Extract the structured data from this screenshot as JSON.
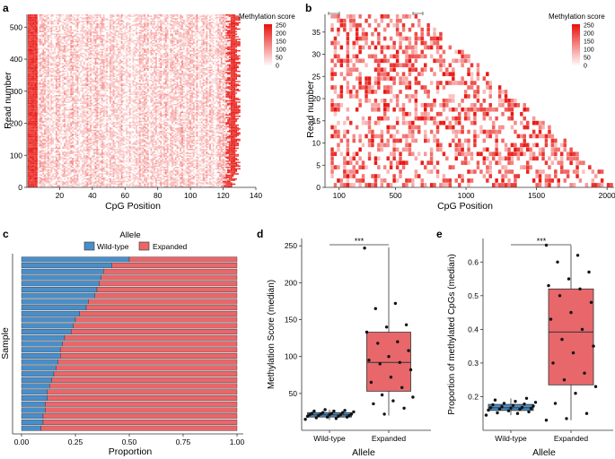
{
  "chart_data": [
    {
      "panel": "a",
      "type": "heatmap",
      "xlabel": "CpG Position",
      "ylabel": "Read number",
      "xlim": [
        0,
        140
      ],
      "ylim": [
        0,
        540
      ],
      "x_ticks": [
        "20",
        "40",
        "60",
        "80",
        "100",
        "120",
        "140"
      ],
      "y_ticks": [
        "0",
        "100",
        "200",
        "300",
        "400",
        "500"
      ],
      "legend": {
        "title": "Methylation score",
        "ticks": [
          "250",
          "200",
          "150",
          "100",
          "50",
          "0"
        ]
      }
    },
    {
      "panel": "b",
      "type": "heatmap",
      "xlabel": "CpG Position",
      "ylabel": "Read number",
      "xlim": [
        0,
        2050
      ],
      "ylim": [
        0,
        39
      ],
      "x_ticks": [
        "100",
        "500",
        "1000",
        "1500",
        "2000"
      ],
      "y_ticks": [
        "0",
        "5",
        "10",
        "15",
        "20",
        "25",
        "30",
        "35"
      ],
      "legend": {
        "title": "Methylation score",
        "ticks": [
          "250",
          "200",
          "150",
          "100",
          "50",
          "0"
        ]
      }
    },
    {
      "panel": "c",
      "type": "bar",
      "orientation": "horizontal-stacked",
      "xlabel": "Proportion",
      "ylabel": "Sample",
      "xlim": [
        0,
        1
      ],
      "x_ticks": [
        "0.00",
        "0.25",
        "0.50",
        "0.75",
        "1.00"
      ],
      "legend": {
        "title": "Allele",
        "entries": [
          "Wild-type",
          "Expanded"
        ]
      },
      "series": [
        {
          "name": "Wild-type",
          "color": "#4a8ec9",
          "values": [
            0.5,
            0.42,
            0.38,
            0.37,
            0.36,
            0.35,
            0.34,
            0.31,
            0.3,
            0.27,
            0.25,
            0.24,
            0.23,
            0.2,
            0.19,
            0.18,
            0.18,
            0.17,
            0.16,
            0.15,
            0.14,
            0.13,
            0.12,
            0.12,
            0.11,
            0.11,
            0.1,
            0.1,
            0.09
          ]
        },
        {
          "name": "Expanded",
          "color": "#e8676b"
        }
      ]
    },
    {
      "panel": "d",
      "type": "box",
      "xlabel": "Allele",
      "ylabel": "Methylation Score (median)",
      "ylim": [
        0,
        260
      ],
      "y_ticks": [
        "50",
        "100",
        "150",
        "200",
        "250"
      ],
      "categories": [
        "Wild-type",
        "Expanded"
      ],
      "significance": "***",
      "boxes": [
        {
          "name": "Wild-type",
          "color": "#4a8ec9",
          "q1": 18,
          "median": 21,
          "q3": 24,
          "whisker_low": 14,
          "whisker_high": 28,
          "points": [
            15,
            16,
            17,
            18,
            18,
            19,
            19,
            20,
            20,
            21,
            21,
            21,
            22,
            22,
            23,
            23,
            24,
            24,
            25,
            26,
            26,
            27,
            28
          ]
        },
        {
          "name": "Expanded",
          "color": "#e8676b",
          "q1": 53,
          "median": 92,
          "q3": 133,
          "whisker_low": 20,
          "whisker_high": 248,
          "points": [
            247,
            172,
            165,
            143,
            140,
            133,
            120,
            118,
            108,
            100,
            95,
            92,
            90,
            82,
            72,
            65,
            58,
            48,
            45,
            40,
            36,
            30,
            22
          ]
        }
      ]
    },
    {
      "panel": "e",
      "type": "box",
      "xlabel": "Allele",
      "ylabel": "Proportion of methylated CpGs (median)",
      "ylim": [
        0.1,
        0.67
      ],
      "y_ticks": [
        "0.2",
        "0.3",
        "0.4",
        "0.5",
        "0.6"
      ],
      "categories": [
        "Wild-type",
        "Expanded"
      ],
      "significance": "***",
      "boxes": [
        {
          "name": "Wild-type",
          "color": "#4a8ec9",
          "q1": 0.159,
          "median": 0.167,
          "q3": 0.177,
          "whisker_low": 0.145,
          "whisker_high": 0.195,
          "points": [
            0.145,
            0.15,
            0.152,
            0.155,
            0.158,
            0.16,
            0.162,
            0.163,
            0.165,
            0.166,
            0.167,
            0.168,
            0.17,
            0.172,
            0.174,
            0.176,
            0.178,
            0.18,
            0.183,
            0.186,
            0.19,
            0.195
          ]
        },
        {
          "name": "Expanded",
          "color": "#e8676b",
          "q1": 0.235,
          "median": 0.392,
          "q3": 0.52,
          "whisker_low": 0.13,
          "whisker_high": 0.65,
          "points": [
            0.65,
            0.62,
            0.6,
            0.57,
            0.55,
            0.53,
            0.52,
            0.5,
            0.48,
            0.45,
            0.43,
            0.4,
            0.37,
            0.35,
            0.33,
            0.3,
            0.27,
            0.25,
            0.23,
            0.21,
            0.18,
            0.15,
            0.135,
            0.13
          ]
        }
      ]
    }
  ],
  "panel_labels": [
    "a",
    "b",
    "c",
    "d",
    "e"
  ]
}
